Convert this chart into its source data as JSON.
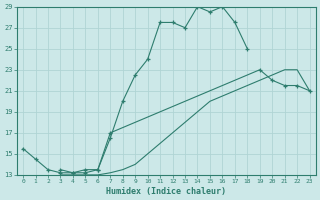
{
  "xlabel": "Humidex (Indice chaleur)",
  "bg_color": "#cce8e8",
  "grid_color": "#b0d4d4",
  "line_color": "#2e7d6e",
  "xlim": [
    -0.5,
    23.5
  ],
  "ylim": [
    13,
    29
  ],
  "xticks": [
    0,
    1,
    2,
    3,
    4,
    5,
    6,
    7,
    8,
    9,
    10,
    11,
    12,
    13,
    14,
    15,
    16,
    17,
    18,
    19,
    20,
    21,
    22,
    23
  ],
  "yticks": [
    13,
    15,
    17,
    19,
    21,
    23,
    25,
    27,
    29
  ],
  "series": [
    {
      "x": [
        0,
        1,
        2,
        3,
        4,
        5,
        6,
        7,
        8,
        9,
        10,
        11,
        12,
        13,
        14,
        15,
        16,
        17,
        18
      ],
      "y": [
        15.5,
        14.5,
        13.5,
        13.2,
        13.2,
        13.2,
        13.5,
        16.5,
        20.0,
        22.5,
        24.0,
        27.5,
        27.5,
        27.0,
        29.0,
        28.5,
        29.0,
        27.5,
        25.0
      ],
      "marker": true
    },
    {
      "x": [
        3,
        4,
        5,
        6,
        7,
        19,
        20,
        21,
        22,
        23
      ],
      "y": [
        13.5,
        13.2,
        13.5,
        13.5,
        17.0,
        23.0,
        22.0,
        21.5,
        21.5,
        21.0
      ],
      "marker": true
    },
    {
      "x": [
        3,
        4,
        5,
        6,
        7,
        8,
        9,
        10,
        11,
        12,
        13,
        14,
        15,
        16,
        17,
        18,
        19,
        20,
        21,
        22,
        23
      ],
      "y": [
        13.0,
        13.0,
        13.0,
        13.0,
        13.2,
        13.5,
        14.0,
        15.0,
        16.0,
        17.0,
        18.0,
        19.0,
        20.0,
        20.5,
        21.0,
        21.5,
        22.0,
        22.5,
        23.0,
        23.0,
        21.0
      ],
      "marker": false
    }
  ]
}
